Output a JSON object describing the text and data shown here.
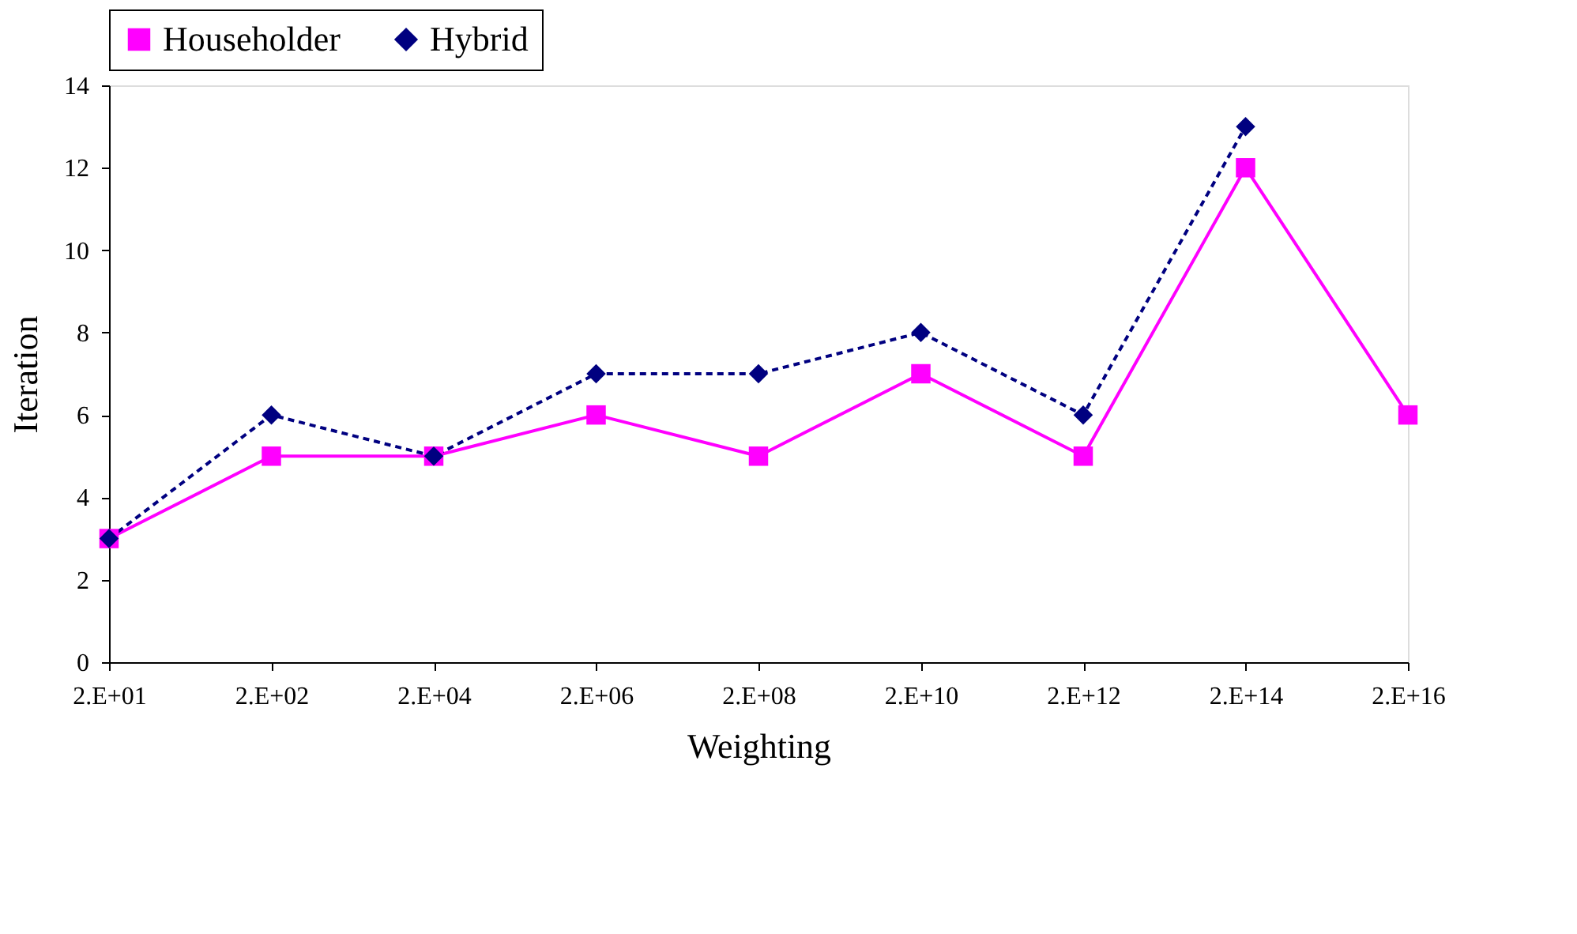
{
  "chart_data": {
    "type": "line",
    "xlabel": "Weighting",
    "ylabel": "Iteration",
    "categories": [
      "2.E+01",
      "2.E+02",
      "2.E+04",
      "2.E+06",
      "2.E+08",
      "2.E+10",
      "2.E+12",
      "2.E+14",
      "2.E+16"
    ],
    "series": [
      {
        "name": "Householder",
        "color": "#ff00ff",
        "marker": "square",
        "line_style": "solid",
        "values": [
          3,
          5,
          5,
          6,
          5,
          7,
          5,
          12,
          6
        ]
      },
      {
        "name": "Hybrid",
        "color": "#000080",
        "marker": "diamond",
        "line_style": "dashed",
        "values": [
          3,
          6,
          5,
          7,
          7,
          8,
          6,
          13,
          null
        ]
      }
    ],
    "ylim": [
      0,
      14
    ],
    "yticks": [
      0,
      2,
      4,
      6,
      8,
      10,
      12,
      14
    ],
    "grid": false,
    "legend": "top"
  }
}
